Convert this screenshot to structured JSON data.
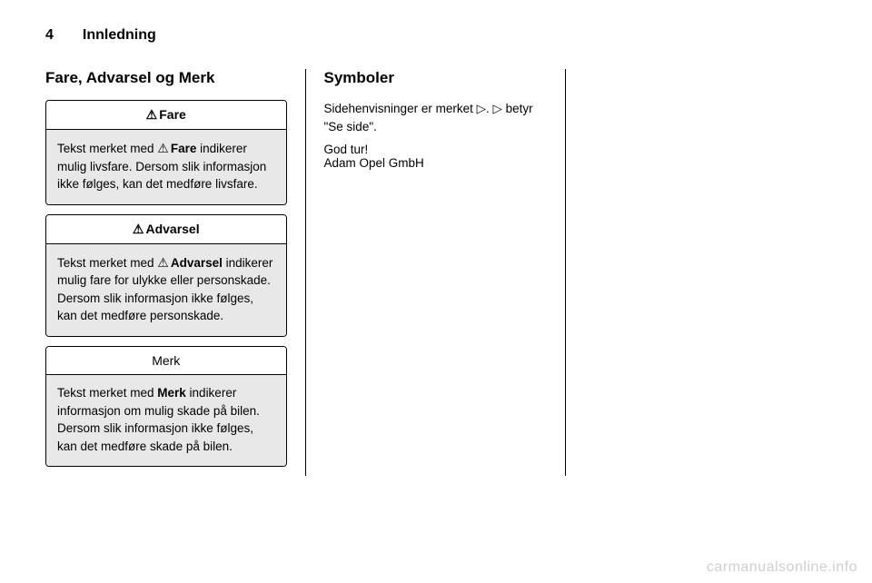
{
  "header": {
    "pageNumber": "4",
    "chapterTitle": "Innledning"
  },
  "col1": {
    "heading": "Fare, Advarsel og Merk",
    "danger": {
      "icon": "⚠",
      "title": "Fare",
      "bodyPrefix": "Tekst merket med ",
      "iconInline": "⚠",
      "bodyKeyword": "Fare",
      "bodySuffix": " indike­rer mulig livsfare. Dersom slik in­formasjon ikke følges, kan det medføre livsfare."
    },
    "warning": {
      "icon": "⚠",
      "title": "Advarsel",
      "bodyPrefix": "Tekst merket med ",
      "iconInline": "⚠",
      "bodyKeyword": "Advarsel",
      "bodySuffix": " in­dikerer mulig fare for ulykke eller personskade. Dersom slik in­formasjon ikke følges, kan det medføre personskade."
    },
    "note": {
      "title": "Merk",
      "bodyPrefix": "Tekst merket med ",
      "bodyKeyword": "Merk",
      "bodySuffix": " indikerer informasjon om mulig skade på bi­len. Dersom slik informasjon ikke følges, kan det medføre skade på bilen."
    }
  },
  "col2": {
    "heading": "Symboler",
    "line1a": "Sidehenvisninger er merket ",
    "sym1": "▷",
    "line1b": ". ",
    "sym2": "▷",
    "line1c": " be­tyr \"Se side\".",
    "signoff": "God tur!",
    "company": "Adam Opel GmbH"
  },
  "watermark": "carmanualsonline.info"
}
